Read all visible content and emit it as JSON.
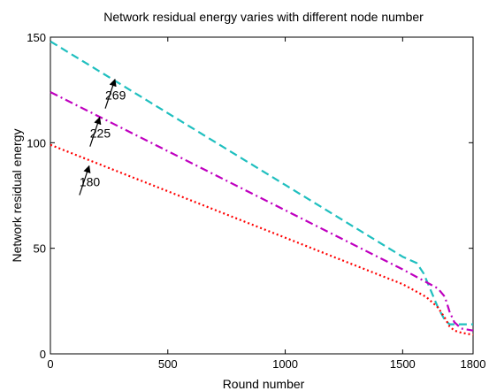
{
  "chart_data": {
    "type": "line",
    "title": "Network residual energy varies with different node number",
    "xlabel": "Round number",
    "ylabel": "Network residual energy",
    "xlim": [
      0,
      1800
    ],
    "ylim": [
      0,
      150
    ],
    "xticks": [
      0,
      500,
      1000,
      1500,
      1800
    ],
    "yticks": [
      0,
      50,
      100,
      150
    ],
    "xtick_labels": [
      "0",
      "500",
      "1000",
      "1500",
      "1800"
    ],
    "ytick_labels": [
      "0",
      "50",
      "100",
      "150"
    ],
    "grid": false,
    "series": [
      {
        "name": "269",
        "color": "#1FBFBF",
        "dash": "dashed",
        "x": [
          0,
          250,
          500,
          750,
          1000,
          1250,
          1500,
          1560,
          1590,
          1620,
          1650,
          1680,
          1700,
          1720,
          1750,
          1800
        ],
        "y": [
          148,
          131,
          114,
          97,
          80,
          63,
          46,
          43,
          38,
          30,
          22,
          16,
          14,
          14,
          14,
          14
        ]
      },
      {
        "name": "225",
        "color": "#BF00BF",
        "dash": "dashdot",
        "x": [
          0,
          250,
          500,
          750,
          1000,
          1250,
          1500,
          1600,
          1650,
          1680,
          1700,
          1720,
          1750,
          1800
        ],
        "y": [
          124,
          110,
          96,
          82,
          68,
          54,
          40,
          34,
          31,
          27,
          20,
          15,
          12,
          11
        ]
      },
      {
        "name": "180",
        "color": "#FF0000",
        "dash": "dotted",
        "x": [
          0,
          250,
          500,
          750,
          1000,
          1250,
          1500,
          1600,
          1650,
          1680,
          1700,
          1720,
          1750,
          1800
        ],
        "y": [
          99,
          88,
          77,
          66,
          55,
          44,
          33,
          27,
          22,
          17,
          13,
          11,
          10,
          9
        ]
      }
    ],
    "annotations": [
      {
        "text": "269",
        "arrow_to_x": 275,
        "arrow_to_y": 130
      },
      {
        "text": "225",
        "arrow_to_x": 210,
        "arrow_to_y": 112
      },
      {
        "text": "180",
        "arrow_to_x": 165,
        "arrow_to_y": 89
      }
    ]
  }
}
